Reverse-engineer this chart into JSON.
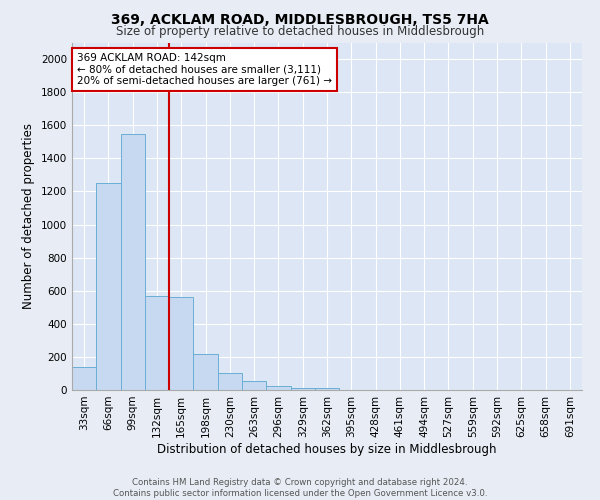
{
  "title": "369, ACKLAM ROAD, MIDDLESBROUGH, TS5 7HA",
  "subtitle": "Size of property relative to detached houses in Middlesbrough",
  "xlabel": "Distribution of detached houses by size in Middlesbrough",
  "ylabel": "Number of detached properties",
  "footer_line1": "Contains HM Land Registry data © Crown copyright and database right 2024.",
  "footer_line2": "Contains public sector information licensed under the Open Government Licence v3.0.",
  "bar_labels": [
    "33sqm",
    "66sqm",
    "99sqm",
    "132sqm",
    "165sqm",
    "198sqm",
    "230sqm",
    "263sqm",
    "296sqm",
    "329sqm",
    "362sqm",
    "395sqm",
    "428sqm",
    "461sqm",
    "494sqm",
    "527sqm",
    "559sqm",
    "592sqm",
    "625sqm",
    "658sqm",
    "691sqm"
  ],
  "bar_values": [
    140,
    1250,
    1550,
    570,
    560,
    220,
    100,
    55,
    25,
    15,
    15,
    0,
    0,
    0,
    0,
    0,
    0,
    0,
    0,
    0,
    0
  ],
  "bar_color": "#c6d9f0",
  "bar_edgecolor": "#6baed6",
  "vline_x": 3.5,
  "vline_color": "#cc0000",
  "annotation_line1": "369 ACKLAM ROAD: 142sqm",
  "annotation_line2": "← 80% of detached houses are smaller (3,111)",
  "annotation_line3": "20% of semi-detached houses are larger (761) →",
  "annotation_box_color": "#ffffff",
  "annotation_box_edgecolor": "#cc0000",
  "ylim": [
    0,
    2100
  ],
  "yticks": [
    0,
    200,
    400,
    600,
    800,
    1000,
    1200,
    1400,
    1600,
    1800,
    2000
  ],
  "background_color": "#e8edf5",
  "plot_background": "#dce6f5",
  "title_fontsize": 10,
  "subtitle_fontsize": 8.5,
  "xlabel_fontsize": 8.5,
  "ylabel_fontsize": 8.5,
  "tick_fontsize": 7.5,
  "footer_fontsize": 6.2
}
